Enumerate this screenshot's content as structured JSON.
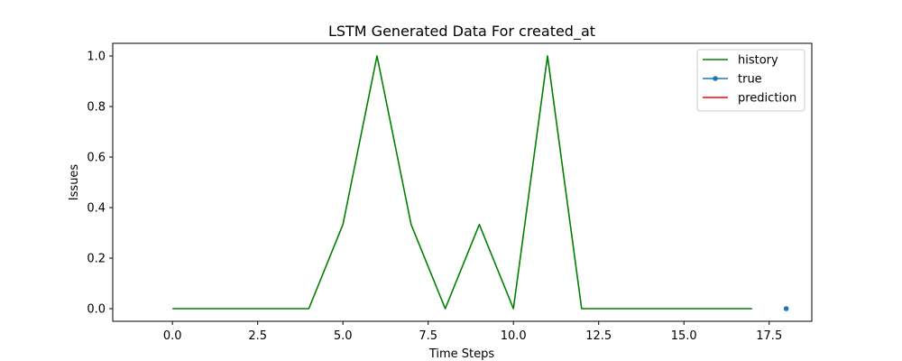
{
  "chart_data": {
    "type": "line",
    "title": "LSTM Generated Data For created_at",
    "xlabel": "Time Steps",
    "ylabel": "Issues",
    "xlim": [
      -1.75,
      18.75
    ],
    "ylim": [
      -0.05,
      1.05
    ],
    "xticks": [
      0.0,
      2.5,
      5.0,
      7.5,
      10.0,
      12.5,
      15.0,
      17.5
    ],
    "xtick_labels": [
      "0.0",
      "2.5",
      "5.0",
      "7.5",
      "10.0",
      "12.5",
      "15.0",
      "17.5"
    ],
    "yticks": [
      0.0,
      0.2,
      0.4,
      0.6,
      0.8,
      1.0
    ],
    "ytick_labels": [
      "0.0",
      "0.2",
      "0.4",
      "0.6",
      "0.8",
      "1.0"
    ],
    "grid": false,
    "legend_position": "top-right",
    "series": [
      {
        "name": "history",
        "color": "#008000",
        "marker": "none",
        "x": [
          0,
          1,
          2,
          3,
          4,
          5,
          6,
          7,
          8,
          9,
          10,
          11,
          12,
          13,
          14,
          15,
          16,
          17
        ],
        "y": [
          0,
          0,
          0,
          0,
          0,
          0.333,
          1,
          0.333,
          0,
          0.333,
          0,
          1,
          0,
          0,
          0,
          0,
          0,
          0
        ]
      },
      {
        "name": "true",
        "color": "#1f77b4",
        "marker": "dot",
        "x": [
          18
        ],
        "y": [
          0
        ]
      },
      {
        "name": "prediction",
        "color": "#ff0000",
        "marker": "none",
        "x": [],
        "y": []
      }
    ]
  }
}
